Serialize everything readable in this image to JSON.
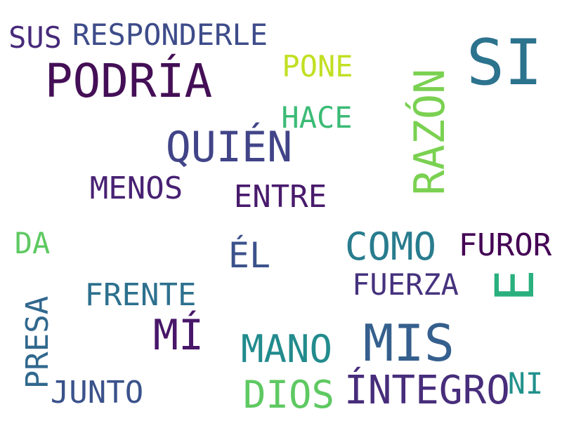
{
  "words": [
    {
      "text": "SI",
      "color": "#2c738e"
    },
    {
      "text": "PODRÍA",
      "color": "#440f56"
    },
    {
      "text": "SUS",
      "color": "#472a7a"
    },
    {
      "text": "RESPONDERLE",
      "color": "#3e4c8a"
    },
    {
      "text": "PONE",
      "color": "#c2df23"
    },
    {
      "text": "RAZÓN",
      "color": "#7ad151"
    },
    {
      "text": "HACE",
      "color": "#3bbb75"
    },
    {
      "text": "QUIÉN",
      "color": "#414487"
    },
    {
      "text": "MENOS",
      "color": "#482173"
    },
    {
      "text": "ENTRE",
      "color": "#481a6c"
    },
    {
      "text": "DA",
      "color": "#5ec962"
    },
    {
      "text": "ÉL",
      "color": "#3b528b"
    },
    {
      "text": "COMO",
      "color": "#287c8e"
    },
    {
      "text": "FUROR",
      "color": "#440154"
    },
    {
      "text": "E",
      "color": "#2ab07f"
    },
    {
      "text": "FRENTE",
      "color": "#2d708e"
    },
    {
      "text": "FUERZA",
      "color": "#46327e"
    },
    {
      "text": "PRESA",
      "color": "#31688e"
    },
    {
      "text": "MÍ",
      "color": "#481769"
    },
    {
      "text": "MIS",
      "color": "#355f8d"
    },
    {
      "text": "MANO",
      "color": "#228b8d"
    },
    {
      "text": "JUNTO",
      "color": "#3b528b"
    },
    {
      "text": "DIOS",
      "color": "#5ec962"
    },
    {
      "text": "ÍNTEGRO",
      "color": "#472d7b"
    },
    {
      "text": "NI",
      "color": "#21918c"
    }
  ]
}
